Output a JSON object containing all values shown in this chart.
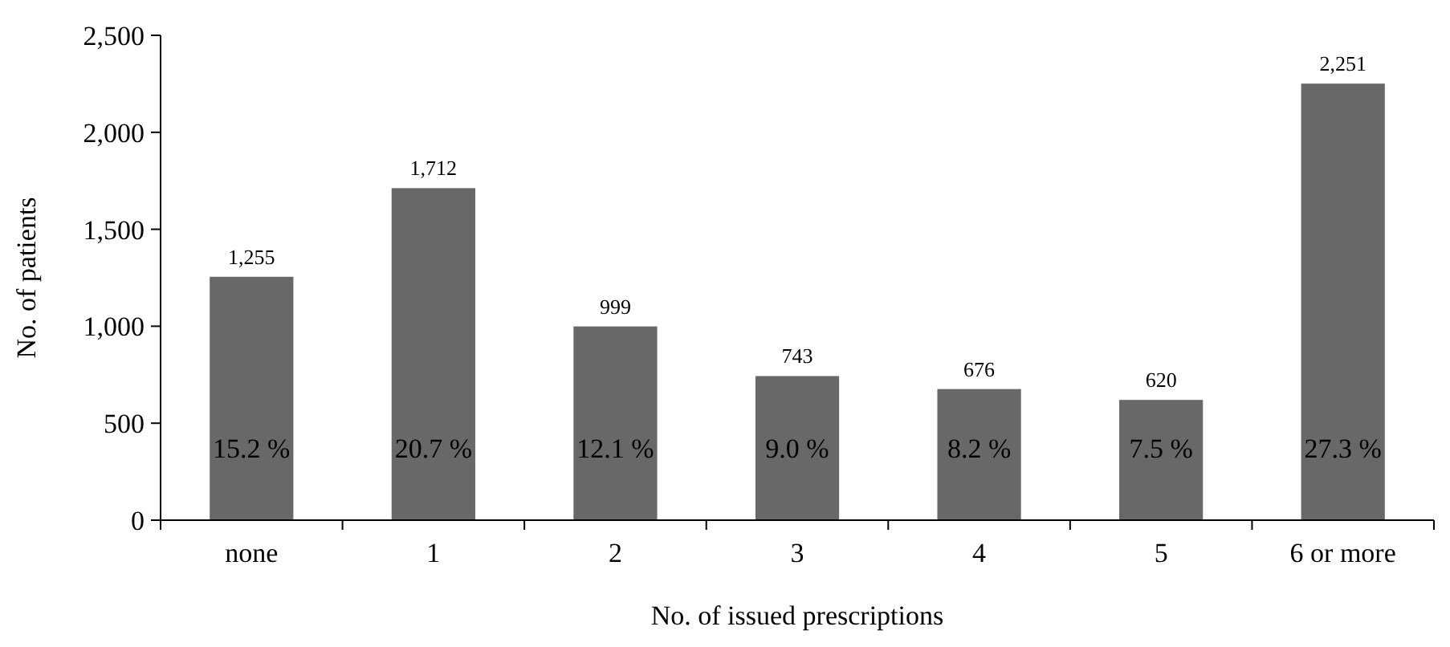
{
  "chart_data": {
    "type": "bar",
    "xlabel": "No. of issued prescriptions",
    "ylabel": "No. of patients",
    "categories": [
      "none",
      "1",
      "2",
      "3",
      "4",
      "5",
      "6 or more"
    ],
    "values": [
      1255,
      1712,
      999,
      743,
      676,
      620,
      2251
    ],
    "value_labels": [
      "1,255",
      "1,712",
      "999",
      "743",
      "676",
      "620",
      "2,251"
    ],
    "color": "#686868",
    "ylim": [
      0,
      2500
    ],
    "yticks": [
      {
        "value": 0,
        "label": "0"
      },
      {
        "value": 500,
        "label": "500"
      },
      {
        "value": 1000,
        "label": "1,000"
      },
      {
        "value": 1500,
        "label": "1,500"
      },
      {
        "value": 2000,
        "label": "2,000"
      },
      {
        "value": 2500,
        "label": "2,500"
      }
    ],
    "grid": false,
    "annotations": [
      "15.2 %",
      "20.7 %",
      "12.1 %",
      "9.0 %",
      "8.2 %",
      "7.5 %",
      "27.3 %"
    ]
  }
}
